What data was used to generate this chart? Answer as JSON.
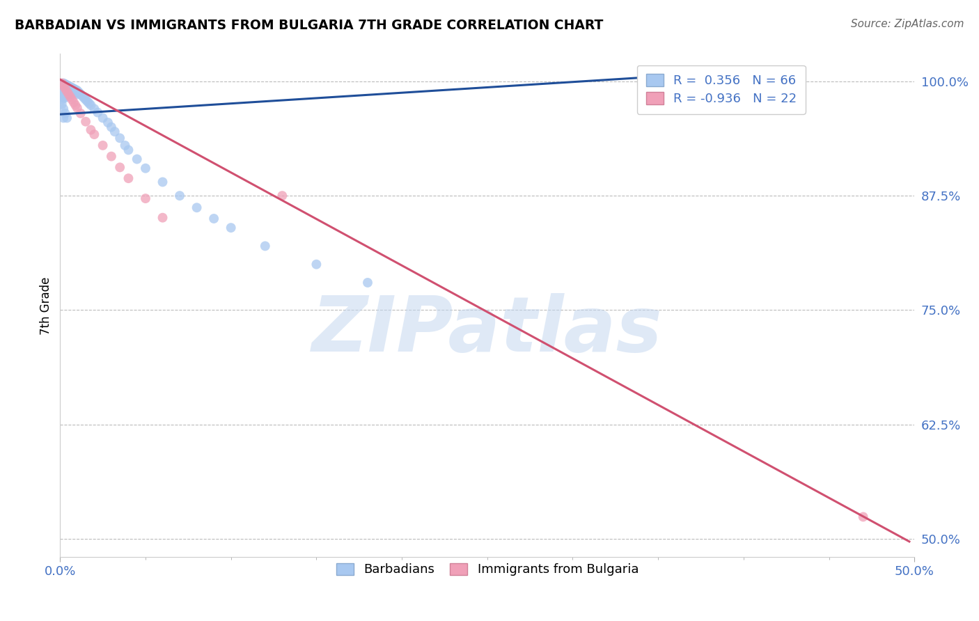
{
  "title": "BARBADIAN VS IMMIGRANTS FROM BULGARIA 7TH GRADE CORRELATION CHART",
  "source": "Source: ZipAtlas.com",
  "ylabel": "7th Grade",
  "ylabel_ticks": [
    "100.0%",
    "87.5%",
    "75.0%",
    "62.5%",
    "50.0%"
  ],
  "ylabel_values": [
    1.0,
    0.875,
    0.75,
    0.625,
    0.5
  ],
  "xtick_labels": [
    "0.0%",
    "50.0%"
  ],
  "xtick_values": [
    0.0,
    0.5
  ],
  "xmin": 0.0,
  "xmax": 0.5,
  "ymin": 0.48,
  "ymax": 1.03,
  "blue_R": "0.356",
  "blue_N": "66",
  "pink_R": "-0.936",
  "pink_N": "22",
  "blue_color": "#A8C8F0",
  "pink_color": "#F0A0B8",
  "blue_line_color": "#1F4E99",
  "pink_line_color": "#D05070",
  "legend_blue_label": "R =  0.356   N = 66",
  "legend_pink_label": "R = -0.936   N = 22",
  "legend_label_barbadians": "Barbadians",
  "legend_label_bulgaria": "Immigrants from Bulgaria",
  "watermark": "ZIPatlas",
  "blue_line_x": [
    0.0,
    0.348
  ],
  "blue_line_y": [
    0.964,
    1.005
  ],
  "pink_line_x": [
    0.0,
    0.497
  ],
  "pink_line_y": [
    1.002,
    0.497
  ],
  "blue_x": [
    0.001,
    0.001,
    0.001,
    0.001,
    0.002,
    0.002,
    0.002,
    0.002,
    0.002,
    0.002,
    0.003,
    0.003,
    0.003,
    0.003,
    0.003,
    0.004,
    0.004,
    0.004,
    0.004,
    0.005,
    0.005,
    0.005,
    0.006,
    0.006,
    0.006,
    0.007,
    0.007,
    0.008,
    0.008,
    0.009,
    0.009,
    0.01,
    0.01,
    0.011,
    0.012,
    0.013,
    0.014,
    0.015,
    0.016,
    0.017,
    0.018,
    0.02,
    0.022,
    0.025,
    0.028,
    0.03,
    0.032,
    0.035,
    0.038,
    0.04,
    0.045,
    0.05,
    0.06,
    0.07,
    0.08,
    0.09,
    0.1,
    0.12,
    0.15,
    0.18,
    0.001,
    0.002,
    0.003,
    0.004,
    0.348,
    0.002
  ],
  "blue_y": [
    0.995,
    0.99,
    0.985,
    0.98,
    0.998,
    0.995,
    0.992,
    0.988,
    0.985,
    0.982,
    0.997,
    0.994,
    0.99,
    0.986,
    0.982,
    0.996,
    0.993,
    0.989,
    0.985,
    0.995,
    0.991,
    0.987,
    0.994,
    0.99,
    0.986,
    0.993,
    0.989,
    0.992,
    0.988,
    0.991,
    0.987,
    0.99,
    0.986,
    0.988,
    0.986,
    0.984,
    0.982,
    0.98,
    0.978,
    0.976,
    0.974,
    0.97,
    0.966,
    0.96,
    0.955,
    0.95,
    0.945,
    0.938,
    0.93,
    0.925,
    0.915,
    0.905,
    0.89,
    0.875,
    0.862,
    0.85,
    0.84,
    0.82,
    0.8,
    0.78,
    0.975,
    0.97,
    0.965,
    0.96,
    1.001,
    0.96
  ],
  "pink_x": [
    0.001,
    0.002,
    0.003,
    0.004,
    0.005,
    0.006,
    0.007,
    0.008,
    0.009,
    0.01,
    0.012,
    0.015,
    0.018,
    0.02,
    0.025,
    0.03,
    0.035,
    0.04,
    0.05,
    0.06,
    0.13,
    0.47
  ],
  "pink_y": [
    0.998,
    0.995,
    0.992,
    0.989,
    0.986,
    0.983,
    0.98,
    0.977,
    0.974,
    0.971,
    0.965,
    0.956,
    0.947,
    0.942,
    0.93,
    0.918,
    0.906,
    0.894,
    0.872,
    0.851,
    0.875,
    0.524
  ]
}
